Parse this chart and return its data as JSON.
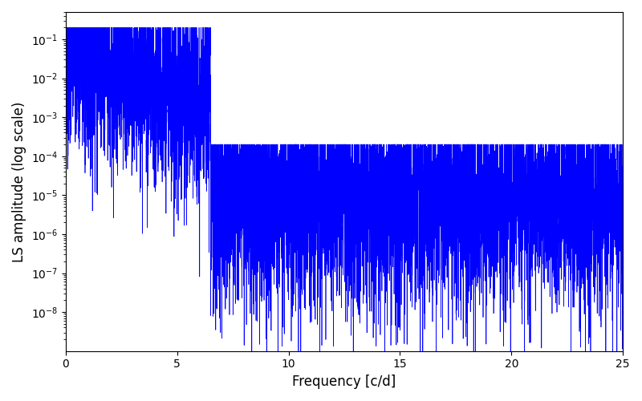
{
  "xlabel": "Frequency [c/d]",
  "ylabel": "LS amplitude (log scale)",
  "xlim": [
    0,
    25
  ],
  "ylim": [
    1e-09,
    0.5
  ],
  "line_color": "#0000ff",
  "linewidth": 0.5,
  "figsize": [
    8.0,
    5.0
  ],
  "dpi": 100,
  "freq_max": 25.0,
  "n_points": 8000,
  "seed": 7,
  "background_color": "#ffffff",
  "yticks": [
    1e-08,
    1e-07,
    1e-06,
    1e-05,
    0.0001,
    0.001,
    0.01,
    0.1
  ],
  "xticks": [
    0,
    5,
    10,
    15,
    20,
    25
  ]
}
